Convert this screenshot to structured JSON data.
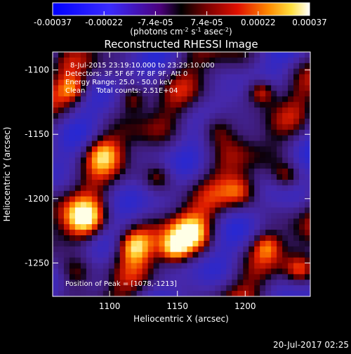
{
  "chart_data": {
    "type": "heatmap",
    "title": "Reconstructed RHESSI Image",
    "xlabel": "Heliocentric X (arcsec)",
    "ylabel": "Heliocentric Y (arcsec)",
    "xlim": [
      1058,
      1248
    ],
    "ylim": [
      -1276,
      -1086
    ],
    "x_ticks": [
      1100,
      1150,
      1200
    ],
    "y_ticks": [
      -1100,
      -1150,
      -1200,
      -1250
    ],
    "colorbar": {
      "min": -0.00037,
      "max": 0.00037,
      "ticks": [
        "-0.00037",
        "-0.00022",
        "-7.4e-05",
        "7.4e-05",
        "0.00022",
        "0.00037"
      ],
      "label": "(photons cm-2 s-1 asec-2)"
    },
    "annotations": [
      "8-Jul-2015 23:19:10.000 to 23:29:10.000",
      "Detectors: 3F 5F 6F 7F 8F 9F, Att 0",
      "Energy Range: 25.0 - 50.0 keV",
      "Clean     Total counts: 2.51E+04"
    ],
    "peak_label": "Position of Peak = [1078,-1213]",
    "peak": [
      1078,
      -1213
    ],
    "grid": false
  },
  "footer": {
    "timestamp": "20-Jul-2017 02:25"
  }
}
